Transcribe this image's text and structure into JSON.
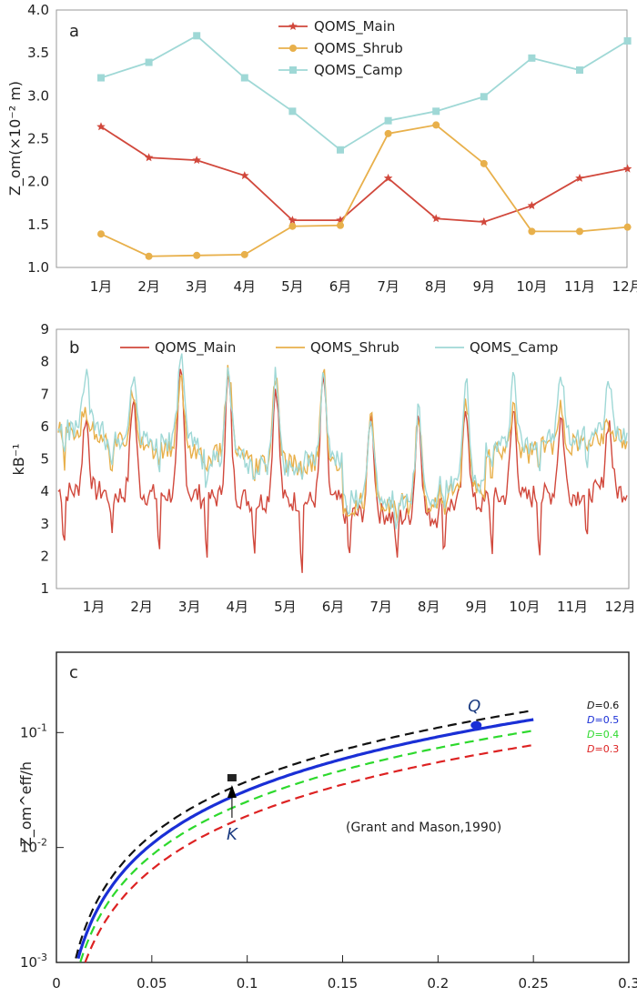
{
  "chart_data": [
    {
      "panel": "a",
      "type": "line",
      "categories": [
        "1月",
        "2月",
        "3月",
        "4月",
        "5月",
        "6月",
        "7月",
        "8月",
        "9月",
        "10月",
        "11月",
        "12月"
      ],
      "ylabel": "Z_om(×10⁻² m)",
      "ylim": [
        1.0,
        4.0
      ],
      "yticks": [
        "1.0",
        "1.5",
        "2.0",
        "2.5",
        "3.0",
        "3.5",
        "4.0"
      ],
      "legend": "top-center",
      "series": [
        {
          "name": "QOMS_Main",
          "color": "#d1483c",
          "marker": "star",
          "values": [
            2.64,
            2.28,
            2.25,
            2.07,
            1.55,
            1.55,
            2.04,
            1.57,
            1.53,
            1.72,
            2.04,
            2.15
          ]
        },
        {
          "name": "QOMS_Shrub",
          "color": "#e8b04b",
          "marker": "circle",
          "values": [
            1.39,
            1.13,
            1.14,
            1.15,
            1.48,
            1.49,
            2.56,
            2.66,
            2.21,
            1.42,
            1.42,
            1.47
          ]
        },
        {
          "name": "QOMS_Camp",
          "color": "#9fd8d6",
          "marker": "square",
          "values": [
            3.21,
            3.39,
            3.7,
            3.21,
            2.82,
            2.37,
            2.71,
            2.82,
            2.99,
            3.44,
            3.3,
            3.64
          ]
        }
      ]
    },
    {
      "panel": "b",
      "type": "line",
      "categories": [
        "1月",
        "2月",
        "3月",
        "4月",
        "5月",
        "6月",
        "7月",
        "8月",
        "9月",
        "10月",
        "11月",
        "12月"
      ],
      "ylabel": "kB⁻¹",
      "ylim": [
        1,
        9
      ],
      "yticks": [
        "1",
        "2",
        "3",
        "4",
        "5",
        "6",
        "7",
        "8",
        "9"
      ],
      "legend": "top",
      "series": [
        {
          "name": "QOMS_Main",
          "color": "#d1483c",
          "monthly_min": [
            2.2,
            2.5,
            1.9,
            1.9,
            2.1,
            1.4,
            1.7,
            1.6,
            2.0,
            2.0,
            2.0,
            2.0
          ],
          "monthly_max": [
            6.3,
            6.9,
            7.6,
            7.5,
            7.3,
            7.5,
            6.4,
            6.4,
            6.6,
            6.5,
            6.3,
            6.2
          ],
          "monthly_base": [
            4.0,
            3.9,
            3.9,
            3.8,
            3.7,
            3.7,
            3.3,
            3.2,
            3.6,
            3.8,
            3.9,
            4.0
          ]
        },
        {
          "name": "QOMS_Shrub",
          "color": "#e8b04b",
          "monthly_min": [
            4.8,
            4.6,
            4.5,
            4.2,
            4.2,
            4.5,
            3.0,
            2.8,
            3.0,
            4.3,
            4.6,
            4.8
          ],
          "monthly_max": [
            6.5,
            7.2,
            7.5,
            7.8,
            7.6,
            7.6,
            6.3,
            6.5,
            6.9,
            6.7,
            6.5,
            6.2
          ],
          "monthly_base": [
            5.8,
            5.5,
            5.3,
            5.1,
            4.8,
            4.8,
            3.6,
            3.6,
            4.0,
            5.2,
            5.4,
            5.6
          ]
        },
        {
          "name": "QOMS_Camp",
          "color": "#9fd8d6",
          "monthly_min": [
            5.0,
            4.9,
            4.8,
            4.0,
            3.9,
            4.3,
            3.0,
            2.8,
            3.1,
            4.4,
            4.6,
            4.9
          ],
          "monthly_max": [
            7.7,
            7.7,
            8.2,
            7.7,
            7.6,
            7.7,
            6.4,
            6.6,
            7.3,
            7.6,
            7.6,
            7.3
          ],
          "monthly_base": [
            5.9,
            5.6,
            5.5,
            5.0,
            4.8,
            4.9,
            3.8,
            3.7,
            4.2,
            5.4,
            5.6,
            5.8
          ]
        }
      ]
    },
    {
      "panel": "c",
      "type": "line",
      "ylabel": "Z_om^eff/h",
      "xlim": [
        0,
        0.3
      ],
      "ylim_log": [
        0.001,
        0.5
      ],
      "xticks": [
        "0",
        "0.05",
        "0.1",
        "0.15",
        "0.2",
        "0.25",
        "0.3"
      ],
      "yticks": [
        {
          "base": "10",
          "exp": "-1"
        },
        {
          "base": "10",
          "exp": "-2"
        },
        {
          "base": "10",
          "exp": "-3"
        }
      ],
      "annotation": "(Grant and Mason,1990)",
      "curves": [
        {
          "D_label": "D",
          "D_value": "=0.6",
          "color": "#111111",
          "dash": true,
          "D": 0.6
        },
        {
          "D_label": "D",
          "D_value": "=0.5",
          "color": "#1a2fd6",
          "dash": false,
          "D": 0.5
        },
        {
          "D_label": "D",
          "D_value": "=0.4",
          "color": "#2dd92d",
          "dash": true,
          "D": 0.4
        },
        {
          "D_label": "D",
          "D_value": "=0.3",
          "color": "#dd2222",
          "dash": true,
          "D": 0.3
        }
      ],
      "points": [
        {
          "label": "Q",
          "x": 0.22,
          "y": 0.116,
          "marker": "ellipse",
          "color": "#1a2fd6"
        },
        {
          "label": "K",
          "x": 0.092,
          "y": 0.039,
          "marker": "square",
          "color": "#222222"
        }
      ]
    }
  ]
}
